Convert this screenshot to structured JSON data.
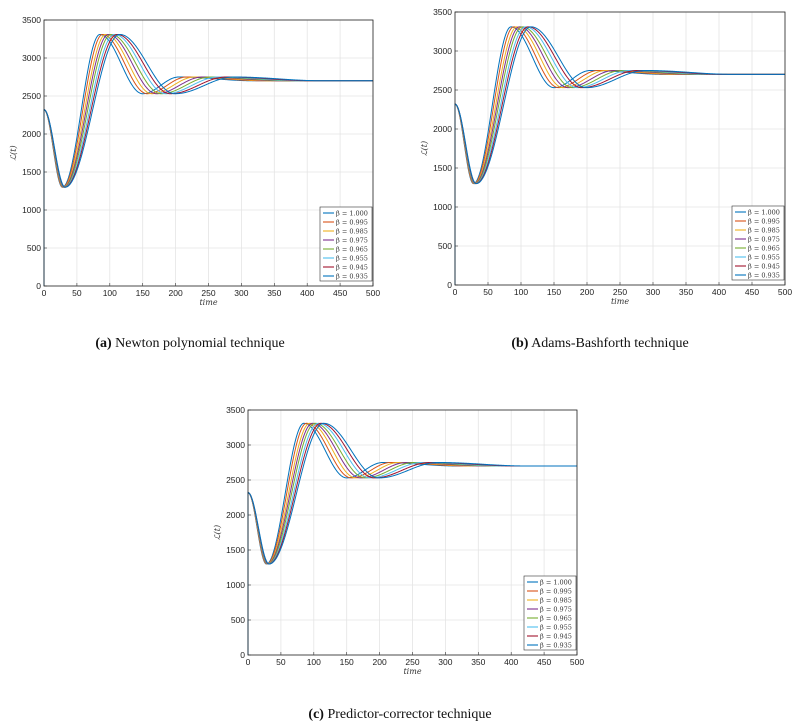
{
  "chart_data": [
    {
      "type": "line",
      "caption": {
        "label": "(a)",
        "text": "Newton polynomial technique"
      },
      "xlabel": "time",
      "ylabel": "ℒ(t)",
      "xlim": [
        0,
        500
      ],
      "ylim": [
        0,
        3500
      ],
      "xticks": [
        0,
        50,
        100,
        150,
        200,
        250,
        300,
        350,
        400,
        450,
        500
      ],
      "yticks": [
        0,
        500,
        1000,
        1500,
        2000,
        2500,
        3000,
        3500
      ],
      "grid": true,
      "legend_position": "bottom-right",
      "series": "shared"
    },
    {
      "type": "line",
      "caption": {
        "label": "(b)",
        "text": "Adams-Bashforth technique"
      },
      "xlabel": "time",
      "ylabel": "ℒ(t)",
      "xlim": [
        0,
        500
      ],
      "ylim": [
        0,
        3500
      ],
      "xticks": [
        0,
        50,
        100,
        150,
        200,
        250,
        300,
        350,
        400,
        450,
        500
      ],
      "yticks": [
        0,
        500,
        1000,
        1500,
        2000,
        2500,
        3000,
        3500
      ],
      "grid": true,
      "legend_position": "bottom-right",
      "series": "shared"
    },
    {
      "type": "line",
      "caption": {
        "label": "(c)",
        "text": "Predictor-corrector technique"
      },
      "xlabel": "time",
      "ylabel": "ℒ(t)",
      "xlim": [
        0,
        500
      ],
      "ylim": [
        0,
        3500
      ],
      "xticks": [
        0,
        50,
        100,
        150,
        200,
        250,
        300,
        350,
        400,
        450,
        500
      ],
      "yticks": [
        0,
        500,
        1000,
        1500,
        2000,
        2500,
        3000,
        3500
      ],
      "grid": true,
      "legend_position": "bottom-right",
      "series": "shared"
    }
  ],
  "series": [
    {
      "name": "β = 1.000",
      "color": "#0072BD",
      "points": [
        [
          0,
          0
        ],
        [
          0,
          2320
        ],
        [
          28,
          1300
        ],
        [
          85,
          3310
        ],
        [
          150,
          2530
        ],
        [
          205,
          2750
        ],
        [
          320,
          2700
        ],
        [
          500,
          2700
        ]
      ]
    },
    {
      "name": "β = 0.995",
      "color": "#D95319",
      "points": [
        [
          0,
          0
        ],
        [
          0,
          2320
        ],
        [
          28.6,
          1300
        ],
        [
          89,
          3310
        ],
        [
          157,
          2530
        ],
        [
          217,
          2750
        ],
        [
          335,
          2700
        ],
        [
          500,
          2700
        ]
      ]
    },
    {
      "name": "β = 0.985",
      "color": "#EDB120",
      "points": [
        [
          0,
          0
        ],
        [
          0,
          2320
        ],
        [
          29.2,
          1300
        ],
        [
          94,
          3310
        ],
        [
          164,
          2530
        ],
        [
          229,
          2750
        ],
        [
          350,
          2700
        ],
        [
          500,
          2700
        ]
      ]
    },
    {
      "name": "β = 0.975",
      "color": "#7E2F8E",
      "points": [
        [
          0,
          0
        ],
        [
          0,
          2320
        ],
        [
          29.8,
          1300
        ],
        [
          98,
          3310
        ],
        [
          171,
          2530
        ],
        [
          241,
          2750
        ],
        [
          365,
          2700
        ],
        [
          500,
          2700
        ]
      ]
    },
    {
      "name": "β = 0.965",
      "color": "#77AC30",
      "points": [
        [
          0,
          0
        ],
        [
          0,
          2320
        ],
        [
          30.4,
          1300
        ],
        [
          102,
          3310
        ],
        [
          178,
          2530
        ],
        [
          253,
          2750
        ],
        [
          380,
          2700
        ],
        [
          500,
          2700
        ]
      ]
    },
    {
      "name": "β = 0.955",
      "color": "#4DBEEE",
      "points": [
        [
          0,
          0
        ],
        [
          0,
          2320
        ],
        [
          31,
          1300
        ],
        [
          107,
          3310
        ],
        [
          185,
          2530
        ],
        [
          265,
          2750
        ],
        [
          395,
          2700
        ],
        [
          500,
          2700
        ]
      ]
    },
    {
      "name": "β = 0.945",
      "color": "#A2142F",
      "points": [
        [
          0,
          0
        ],
        [
          0,
          2320
        ],
        [
          31.6,
          1300
        ],
        [
          111,
          3310
        ],
        [
          192,
          2530
        ],
        [
          277,
          2750
        ],
        [
          410,
          2700
        ],
        [
          500,
          2700
        ]
      ]
    },
    {
      "name": "β = 0.935",
      "color": "#0072BD",
      "points": [
        [
          0,
          0
        ],
        [
          0,
          2320
        ],
        [
          32.2,
          1300
        ],
        [
          115,
          3310
        ],
        [
          199,
          2530
        ],
        [
          289,
          2750
        ],
        [
          425,
          2700
        ],
        [
          500,
          2700
        ]
      ]
    }
  ]
}
